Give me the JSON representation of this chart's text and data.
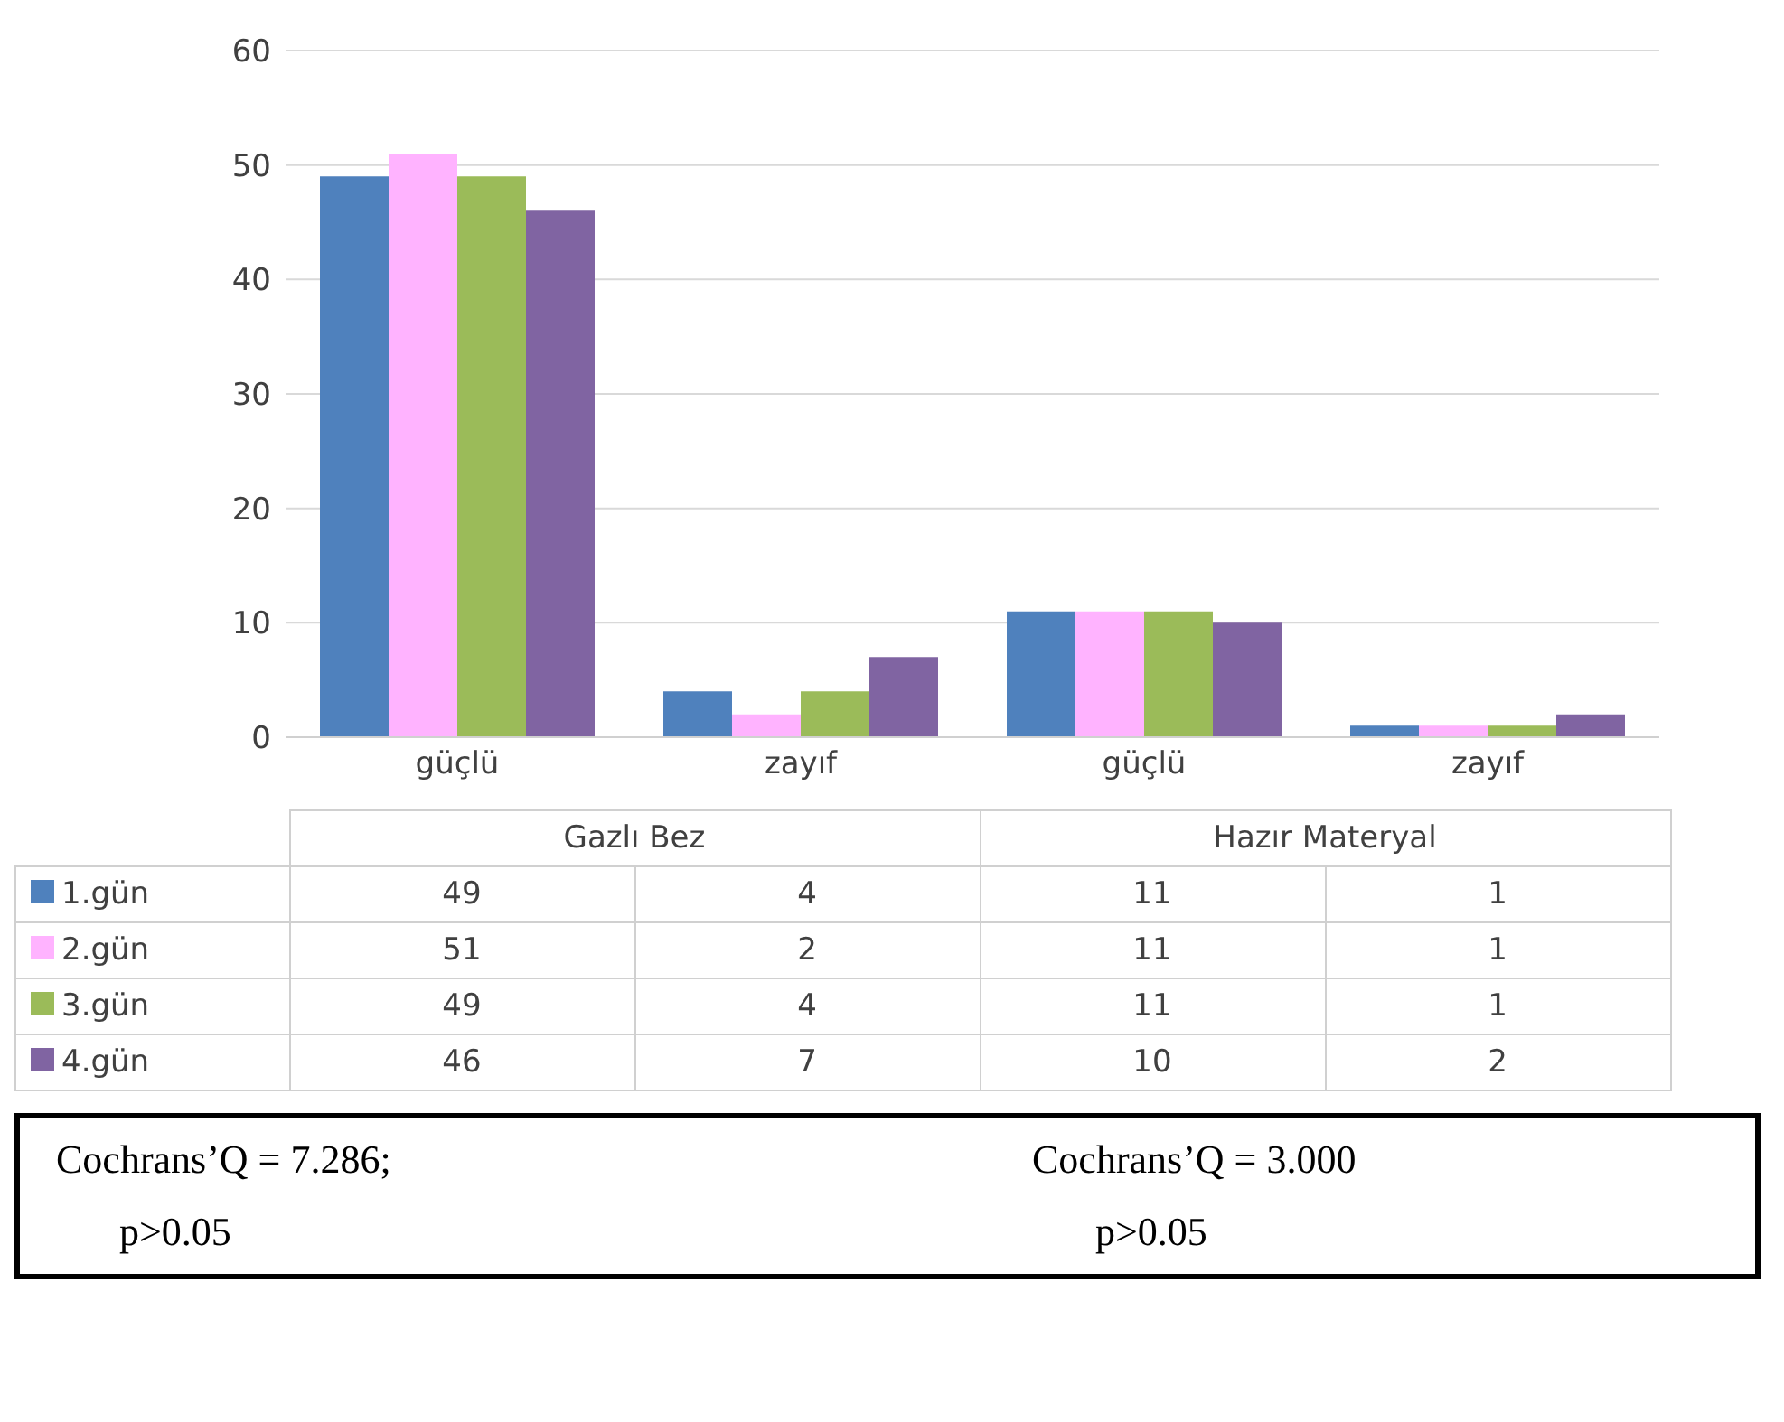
{
  "chart_data": {
    "type": "bar",
    "categories": [
      "güçlü",
      "zayıf",
      "güçlü",
      "zayıf"
    ],
    "series": [
      {
        "name": "1.gün",
        "color": "#4f81bd",
        "values": [
          49,
          4,
          11,
          1
        ]
      },
      {
        "name": "2.gün",
        "color": "#ffb3ff",
        "values": [
          51,
          2,
          11,
          1
        ]
      },
      {
        "name": "3.gün",
        "color": "#9bbb59",
        "values": [
          49,
          4,
          11,
          1
        ]
      },
      {
        "name": "4.gün",
        "color": "#8064a2",
        "values": [
          46,
          7,
          10,
          2
        ]
      }
    ],
    "ylim": [
      0,
      60
    ],
    "yticks": [
      0,
      10,
      20,
      30,
      40,
      50,
      60
    ],
    "grid": "y",
    "legend": "bottom",
    "data_labels": true,
    "annotations": [
      "Gazlı Bez",
      "Hazır Materyal",
      "Cochrans’Q = 7.286;",
      "p>0.05",
      "Cochrans’Q = 3.000",
      "p>0.05"
    ]
  }
}
